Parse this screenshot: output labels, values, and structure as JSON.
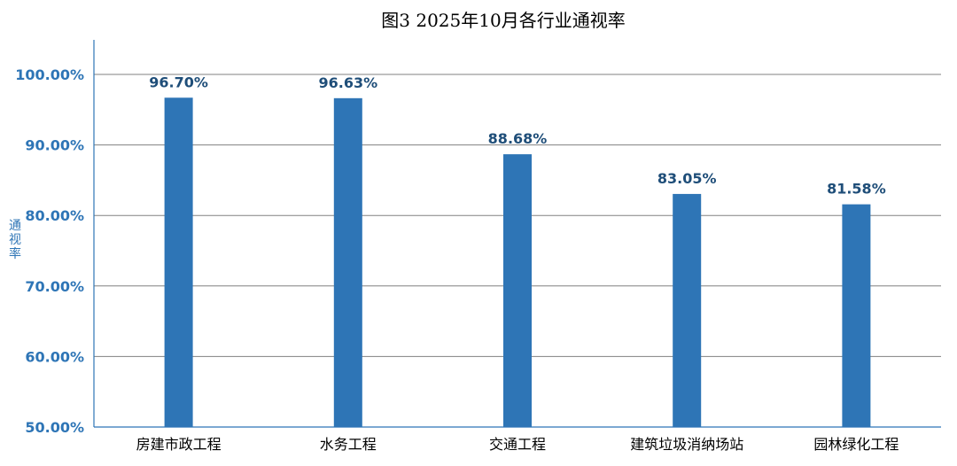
{
  "chart_data": {
    "type": "bar",
    "title": "图3 2025年10月各行业通视率",
    "ylabel": "通视率",
    "xlabel": "",
    "categories": [
      "房建市政工程",
      "水务工程",
      "交通工程",
      "建筑垃圾消纳场站",
      "园林绿化工程"
    ],
    "values": [
      96.7,
      96.63,
      88.68,
      83.05,
      81.58
    ],
    "data_labels": [
      "96.70%",
      "96.63%",
      "88.68%",
      "83.05%",
      "81.58%"
    ],
    "ylim": [
      50,
      100
    ],
    "yticks": [
      50,
      60,
      70,
      80,
      90,
      100
    ],
    "ytick_labels": [
      "50.00%",
      "60.00%",
      "70.00%",
      "80.00%",
      "90.00%",
      "100.00%"
    ],
    "grid": true,
    "legend": "none",
    "colors": {
      "bar": "#2e75b6",
      "grid": "#808080",
      "axis": "#2e75b6",
      "label": "#1f4e79"
    }
  }
}
